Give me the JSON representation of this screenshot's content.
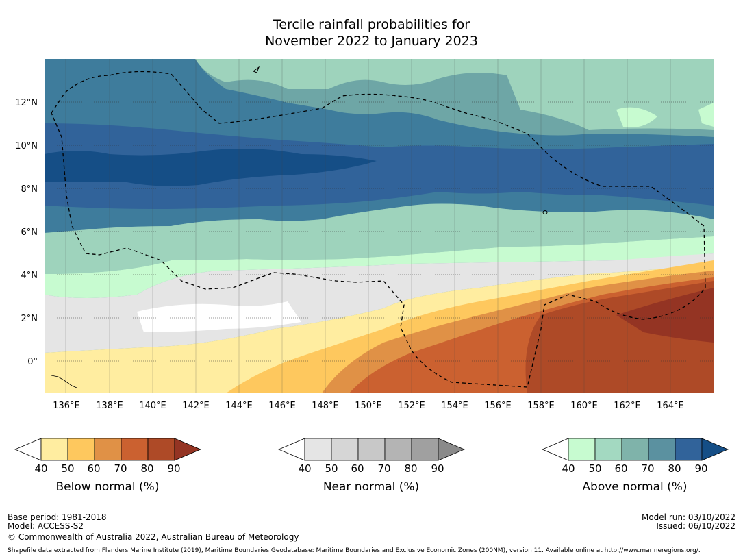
{
  "title": {
    "line1": "Tercile rainfall probabilities for",
    "line2": "November 2022 to January 2023"
  },
  "map": {
    "lat_labels": [
      "12°N",
      "10°N",
      "8°N",
      "6°N",
      "4°N",
      "2°N",
      "0°"
    ],
    "lon_labels": [
      "136°E",
      "138°E",
      "140°E",
      "142°E",
      "144°E",
      "146°E",
      "148°E",
      "150°E",
      "152°E",
      "154°E",
      "156°E",
      "158°E",
      "160°E",
      "162°E",
      "164°E"
    ]
  },
  "legends": {
    "below": {
      "label": "Below normal (%)",
      "ticks": [
        "40",
        "50",
        "60",
        "70",
        "80",
        "90"
      ],
      "colors": [
        "#ffffff",
        "#ffeda0",
        "#fec85e",
        "#e09146",
        "#cb6130",
        "#ae4a27",
        "#943423"
      ]
    },
    "near": {
      "label": "Near normal (%)",
      "ticks": [
        "40",
        "50",
        "60",
        "70",
        "80",
        "90"
      ],
      "colors": [
        "#ffffff",
        "#e5e5e5",
        "#d6d6d6",
        "#c8c8c8",
        "#b4b4b4",
        "#a0a0a0",
        "#8a8a8a"
      ]
    },
    "above": {
      "label": "Above normal (%)",
      "ticks": [
        "40",
        "50",
        "60",
        "70",
        "80",
        "90"
      ],
      "colors": [
        "#ffffff",
        "#c7fbd0",
        "#a3d9c1",
        "#7fb3aa",
        "#5b91a0",
        "#31639a",
        "#154e86"
      ]
    }
  },
  "footer": {
    "base_period": "Base period: 1981-2018",
    "model": "Model: ACCESS-S2",
    "copyright": "© Commonwealth of Australia 2022, Australian Bureau of Meteorology",
    "model_run": "Model run: 03/10/2022",
    "issued": "Issued: 06/10/2022",
    "shapefile": "Shapefile data extracted from Flanders Marine Institute (2019), Maritime Boundaries Geodatabase: Maritime Boundaries and Exclusive Economic Zones (200NM), version 11. Available online at http://www.marineregions.org/."
  }
}
